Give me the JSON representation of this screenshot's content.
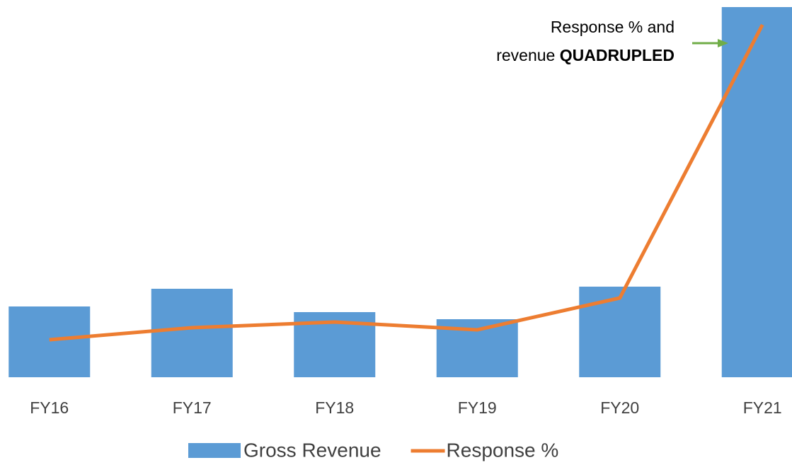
{
  "chart_data": {
    "type": "bar_line",
    "categories": [
      "FY16",
      "FY17",
      "FY18",
      "FY19",
      "FY20",
      "FY21"
    ],
    "series": [
      {
        "name": "Gross Revenue",
        "type": "bar",
        "color": "#5b9bd5",
        "values": [
          100,
          125,
          92,
          82,
          128,
          523
        ]
      },
      {
        "name": "Response %",
        "type": "line",
        "color": "#ed7d31",
        "values": [
          53,
          70,
          78,
          67,
          112,
          498
        ]
      }
    ],
    "ylim": [
      0,
      523
    ],
    "annotation": {
      "lines": [
        "Response % and",
        "revenue",
        "QUADRUPLED"
      ],
      "arrow_color": "#70ad47"
    }
  }
}
